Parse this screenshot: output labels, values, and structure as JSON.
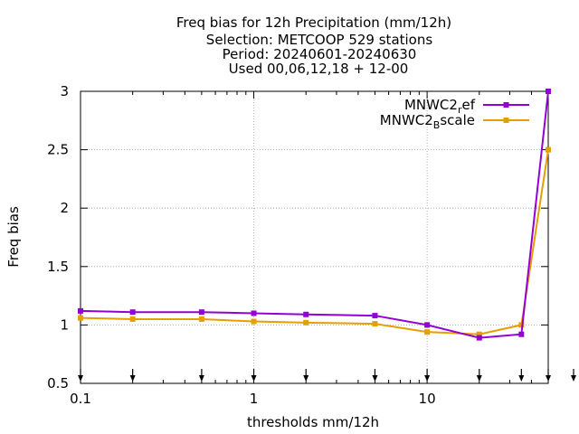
{
  "chart_data": {
    "type": "line",
    "title_lines": [
      "Freq bias  for 12h Precipitation (mm/12h)",
      "Selection: METCOOP    529 stations",
      "Period: 20240601-20240630",
      "Used 00,06,12,18 + 12-00"
    ],
    "xlabel": "thresholds mm/12h",
    "ylabel": "Freq bias",
    "x_scale": "log",
    "xlim": [
      0.1,
      50
    ],
    "ylim": [
      0.5,
      3
    ],
    "x_ticks": [
      {
        "value": 0.1,
        "label": "0.1"
      },
      {
        "value": 1,
        "label": "1"
      },
      {
        "value": 10,
        "label": "10"
      }
    ],
    "y_ticks": [
      {
        "value": 0.5,
        "label": "0.5"
      },
      {
        "value": 1,
        "label": "1"
      },
      {
        "value": 1.5,
        "label": "1.5"
      },
      {
        "value": 2,
        "label": "2"
      },
      {
        "value": 2.5,
        "label": "2.5"
      },
      {
        "value": 3,
        "label": "3"
      }
    ],
    "grid": true,
    "legend_position": "top-right",
    "x": [
      0.1,
      0.2,
      0.5,
      1,
      2,
      5,
      10,
      20,
      35,
      50
    ],
    "series": [
      {
        "name": "MNWC2_ref",
        "legend": {
          "base": "MNWC2",
          "sub": "r",
          "rest": "ef"
        },
        "color": "#9400d3",
        "values": [
          1.12,
          1.11,
          1.11,
          1.1,
          1.09,
          1.08,
          1.0,
          0.89,
          0.92,
          3.0
        ]
      },
      {
        "name": "MNWC2_Bscale",
        "legend": {
          "base": "MNWC2",
          "sub": "B",
          "rest": "scale"
        },
        "color": "#e69f00",
        "values": [
          1.06,
          1.05,
          1.05,
          1.03,
          1.02,
          1.01,
          0.94,
          0.92,
          1.0,
          2.5
        ]
      }
    ],
    "arrow_marks_x": [
      0.1,
      0.2,
      0.5,
      1,
      2,
      5,
      10,
      20,
      35,
      50,
      70
    ]
  }
}
